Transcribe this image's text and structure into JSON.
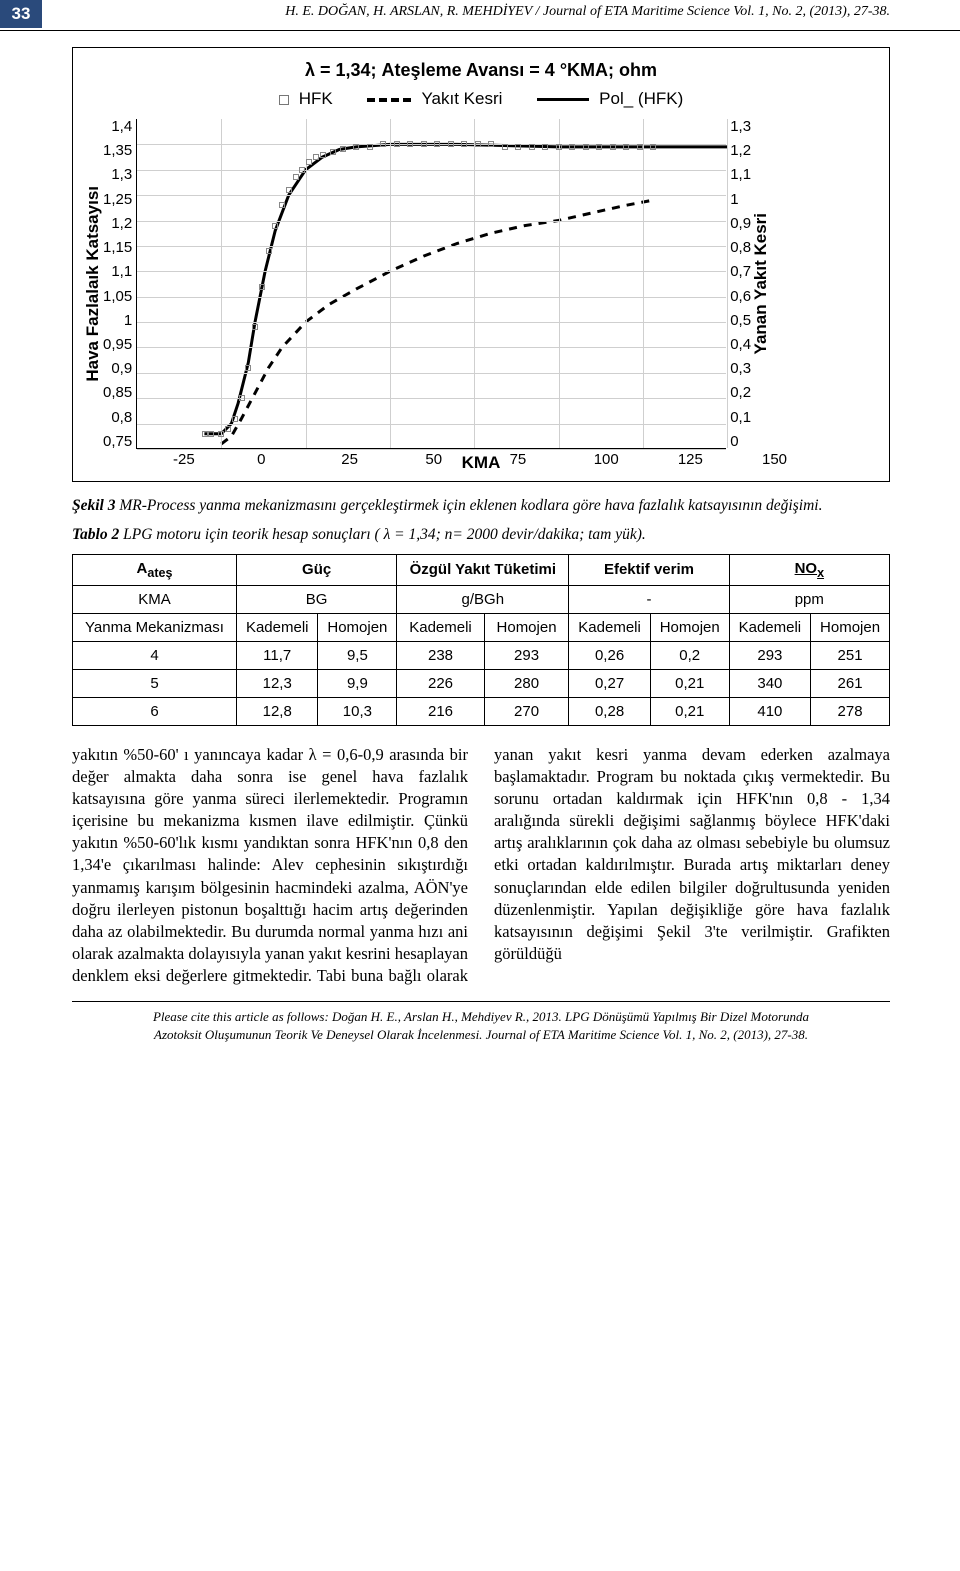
{
  "header": {
    "page_number": "33",
    "running_head": "H. E. DOĞAN, H. ARSLAN, R. MEHDİYEV / Journal of ETA Maritime Science Vol. 1, No. 2, (2013), 27-38."
  },
  "figure": {
    "title": "λ = 1,34; Ateşleme Avansı = 4 °KMA; ohm",
    "legend": {
      "s1": "HFK",
      "s2": "Yakıt Kesri",
      "s3": "Pol_ (HFK)"
    },
    "y_left_label": "Hava Fazlalaık Katsayısı",
    "y_right_label": "Yanan Yakıt  Kesri",
    "x_label": "KMA",
    "y_left_ticks": [
      "1,4",
      "1,35",
      "1,3",
      "1,25",
      "1,2",
      "1,15",
      "1,1",
      "1,05",
      "1",
      "0,95",
      "0,9",
      "0,85",
      "0,8",
      "0,75"
    ],
    "y_right_ticks": [
      "1,3",
      "1,2",
      "1,1",
      "1",
      "0,9",
      "0,8",
      "0,7",
      "0,6",
      "0,5",
      "0,4",
      "0,3",
      "0,2",
      "0,1",
      "0"
    ],
    "x_ticks": [
      "-25",
      "0",
      "25",
      "50",
      "75",
      "100",
      "125",
      "150"
    ],
    "xlim": [
      -25,
      150
    ],
    "ylim_left": [
      0.75,
      1.4
    ],
    "ylim_right": [
      0,
      1.3
    ],
    "grid_color": "#cfcfcf",
    "axis_color": "#000000",
    "pol_hfk": {
      "color": "#000",
      "width": 3,
      "dash": "none",
      "pts": [
        [
          -5,
          0.78
        ],
        [
          0,
          0.78
        ],
        [
          3,
          0.8
        ],
        [
          5,
          0.84
        ],
        [
          8,
          0.92
        ],
        [
          10,
          1.0
        ],
        [
          13,
          1.1
        ],
        [
          16,
          1.18
        ],
        [
          20,
          1.25
        ],
        [
          25,
          1.3
        ],
        [
          30,
          1.325
        ],
        [
          35,
          1.34
        ],
        [
          40,
          1.345
        ],
        [
          50,
          1.35
        ],
        [
          70,
          1.35
        ],
        [
          100,
          1.345
        ],
        [
          125,
          1.345
        ],
        [
          150,
          1.345
        ]
      ]
    },
    "yakit_kesri": {
      "color": "#000",
      "width": 3,
      "dash": "8,7",
      "pts": [
        [
          0,
          0.02
        ],
        [
          3,
          0.05
        ],
        [
          6,
          0.12
        ],
        [
          10,
          0.22
        ],
        [
          14,
          0.32
        ],
        [
          18,
          0.4
        ],
        [
          25,
          0.5
        ],
        [
          32,
          0.57
        ],
        [
          40,
          0.63
        ],
        [
          50,
          0.7
        ],
        [
          60,
          0.76
        ],
        [
          70,
          0.81
        ],
        [
          80,
          0.85
        ],
        [
          90,
          0.88
        ],
        [
          100,
          0.9
        ],
        [
          110,
          0.93
        ],
        [
          120,
          0.96
        ],
        [
          128,
          0.98
        ]
      ]
    },
    "hfk_points": [
      [
        -5,
        0.78
      ],
      [
        -3,
        0.78
      ],
      [
        0,
        0.78
      ],
      [
        2,
        0.79
      ],
      [
        4,
        0.81
      ],
      [
        6,
        0.85
      ],
      [
        8,
        0.91
      ],
      [
        10,
        0.99
      ],
      [
        12,
        1.07
      ],
      [
        14,
        1.14
      ],
      [
        16,
        1.19
      ],
      [
        18,
        1.23
      ],
      [
        20,
        1.26
      ],
      [
        22,
        1.285
      ],
      [
        24,
        1.3
      ],
      [
        26,
        1.315
      ],
      [
        28,
        1.325
      ],
      [
        30,
        1.33
      ],
      [
        33,
        1.335
      ],
      [
        36,
        1.34
      ],
      [
        40,
        1.345
      ],
      [
        44,
        1.345
      ],
      [
        48,
        1.35
      ],
      [
        52,
        1.35
      ],
      [
        56,
        1.35
      ],
      [
        60,
        1.35
      ],
      [
        64,
        1.35
      ],
      [
        68,
        1.35
      ],
      [
        72,
        1.35
      ],
      [
        76,
        1.35
      ],
      [
        80,
        1.35
      ],
      [
        84,
        1.345
      ],
      [
        88,
        1.345
      ],
      [
        92,
        1.345
      ],
      [
        96,
        1.345
      ],
      [
        100,
        1.345
      ],
      [
        104,
        1.345
      ],
      [
        108,
        1.345
      ],
      [
        112,
        1.345
      ],
      [
        116,
        1.345
      ],
      [
        120,
        1.345
      ],
      [
        124,
        1.345
      ],
      [
        128,
        1.345
      ]
    ]
  },
  "captions": {
    "fig3": "Şekil 3 MR-Process yanma mekanizmasını gerçekleştirmek için eklenen kodlara göre hava fazlalık katsayısının değişimi.",
    "tab2": "Tablo 2 LPG motoru için teorik hesap sonuçları ( λ = 1,34; n= 2000 devir/dakika; tam yük).",
    "fig3_b": "Şekil 3",
    "tab2_b": "Tablo 2"
  },
  "table": {
    "head1": [
      "Aateş",
      "Güç",
      "Özgül Yakıt Tüketimi",
      "Efektif verim",
      "NOx"
    ],
    "head2": [
      "KMA",
      "BG",
      "g/BGh",
      "-",
      "ppm"
    ],
    "head3_first": "Yanma Mekanizması",
    "sub": [
      "Kademeli",
      "Homojen",
      "Kademeli",
      "Homojen",
      "Kademeli",
      "Homojen",
      "Kademeli",
      "Homojen"
    ],
    "rows": [
      [
        "4",
        "11,7",
        "9,5",
        "238",
        "293",
        "0,26",
        "0,2",
        "293",
        "251"
      ],
      [
        "5",
        "12,3",
        "9,9",
        "226",
        "280",
        "0,27",
        "0,21",
        "340",
        "261"
      ],
      [
        "6",
        "12,8",
        "10,3",
        "216",
        "270",
        "0,28",
        "0,21",
        "410",
        "278"
      ]
    ]
  },
  "body": {
    "para": "yakıtın %50-60' ı yanıncaya kadar λ = 0,6-0,9 arasında bir değer almakta daha sonra ise genel hava fazlalık katsayısına göre yanma süreci ilerlemektedir. Programın içerisine bu mekanizma kısmen ilave edilmiştir. Çünkü yakıtın %50-60'lık kısmı yandıktan sonra HFK'nın 0,8 den 1,34'e çıkarılması halinde: Alev cephesinin sıkıştırdığı yanmamış karışım bölgesinin hacmindeki azalma, AÖN'ye doğru ilerleyen pistonun boşalttığı hacim artış değerinden daha az olabilmektedir. Bu durumda normal yanma hızı ani olarak azalmakta dolayısıyla yanan yakıt kesrini hesaplayan denklem eksi değerlere gitmektedir. Tabi buna bağlı olarak yanan yakıt kesri yanma devam ederken azalmaya başlamaktadır. Program bu noktada çıkış vermektedir. Bu sorunu ortadan kaldırmak için HFK'nın 0,8 - 1,34 aralığında sürekli değişimi sağlanmış böylece HFK'daki artış aralıklarının çok daha az olması sebebiyle bu olumsuz etki ortadan kaldırılmıştır. Burada artış miktarları deney sonuçlarından elde edilen bilgiler doğrultusunda yeniden düzenlenmiştir. Yapılan değişikliğe göre hava fazlalık katsayısının değişimi Şekil 3'te verilmiştir. Grafikten görüldüğü"
  },
  "footer": {
    "cite": "Please cite this article as follows: Doğan H. E., Arslan H., Mehdiyev R., 2013. LPG Dönüşümü Yapılmış Bir Dizel Motorunda Azotoksit Oluşumunun Teorik Ve Deneysel Olarak İncelenmesi. Journal of ETA Maritime Science Vol. 1, No. 2, (2013), 27-38."
  }
}
